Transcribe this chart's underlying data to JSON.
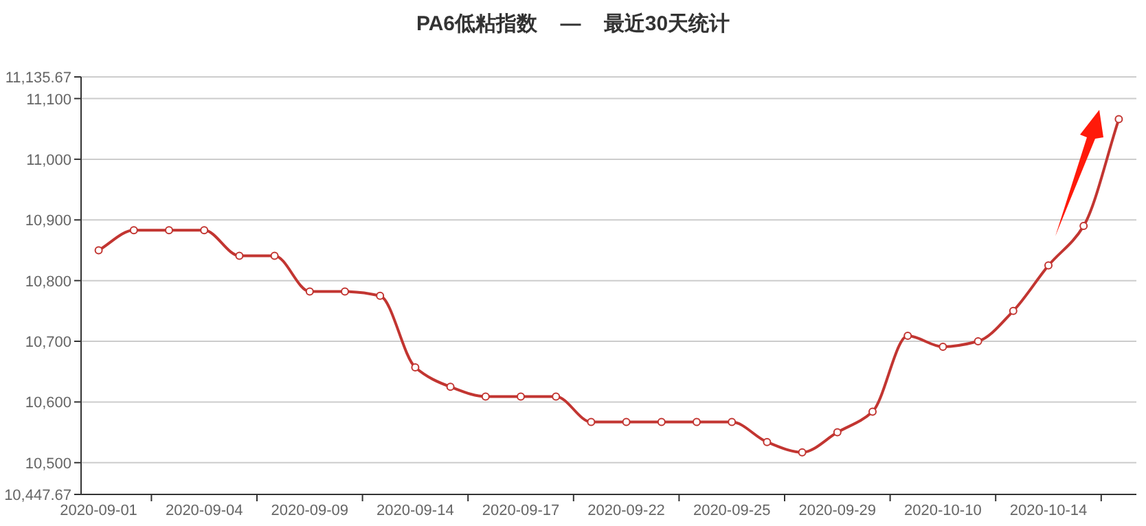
{
  "chart_data": {
    "type": "line",
    "title": "PA6低粘指数    —    最近30天统计",
    "categories": [
      "2020-09-01",
      null,
      null,
      "2020-09-04",
      null,
      null,
      "2020-09-09",
      null,
      null,
      "2020-09-14",
      null,
      null,
      "2020-09-17",
      null,
      null,
      "2020-09-22",
      null,
      null,
      "2020-09-25",
      null,
      null,
      "2020-09-29",
      null,
      null,
      "2020-10-10",
      null,
      null,
      "2020-10-14",
      null,
      null
    ],
    "series": [
      {
        "color": "#c23531",
        "values": [
          10850,
          10883,
          10883,
          10883,
          10841,
          10841,
          10782,
          10782,
          10775,
          10657,
          10625,
          10609,
          10609,
          10609,
          10567,
          10567,
          10567,
          10567,
          10567,
          10534,
          10517,
          10550,
          10584,
          10709,
          10691,
          10700,
          10750,
          10825,
          10890,
          11066
        ]
      }
    ],
    "ylim": [
      10447.67,
      11135.67
    ],
    "yticks": [
      {
        "value": 10447.67,
        "label": "10,447.67"
      },
      {
        "value": 10500,
        "label": "10,500"
      },
      {
        "value": 10600,
        "label": "10,600"
      },
      {
        "value": 10700,
        "label": "10,700"
      },
      {
        "value": 10800,
        "label": "10,800"
      },
      {
        "value": 10900,
        "label": "10,900"
      },
      {
        "value": 11000,
        "label": "11,000"
      },
      {
        "value": 11100,
        "label": "11,100"
      },
      {
        "value": 11135.67,
        "label": "11,135.67"
      }
    ],
    "grid": "y",
    "marker": "circle",
    "line_style": "solid"
  }
}
